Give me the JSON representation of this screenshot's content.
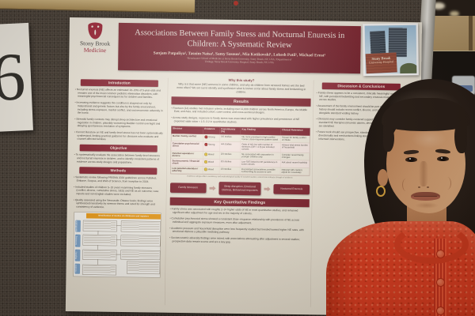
{
  "sign": {
    "number": "6"
  },
  "poster": {
    "logo": {
      "line1": "Stony Brook",
      "line2": "Medicine"
    },
    "header": {
      "title_line1": "Associations Between Family Stress and Nocturnal Enuresis in",
      "title_line2": "Children: A Systematic Review",
      "authors": "Sanjam Patpaliya¹, Tasnim Naisa¹, Samy Sasoun¹, Mia Kotikovski¹, Lokesh Patil¹, Michael Ernst²",
      "affiliation_line1": "¹Renaissance School of Medicine at Stony Brook University, Stony Brook, NY, USA; ²Department of",
      "affiliation_line2": "Urology, Stony Brook University Hospital, Stony Brook, NY, USA",
      "photo_caption_line1": "Stony Brook",
      "photo_caption_line2": "University Hospital"
    },
    "intro": {
      "heading": "Introduction",
      "bullets": [
        "Nocturnal enuresis (NE) affects an estimated 10–20% of 5-year-olds and remains one of the most common pediatric elimination disorders, with meaningful psychosocial consequences for children and families.",
        "Increasing evidence suggests the condition is shaped not only by maturational and genetic factors but also by the family environment, including stress exposure, marital conflict, and socioeconomic adversity in the home.",
        "Stressful family contexts may disrupt sleep architecture and emotional regulation in children, plausibly worsening bladder control overnight and delaying spontaneous resolution of symptoms.",
        "Current literature on NE and family-level stress has not been systematically synthesized, limiting practical guidance for clinicians who evaluate and counsel affected families."
      ]
    },
    "objective": {
      "heading": "Objective",
      "text": "To systematically evaluate the association between family-level stressors and nocturnal enuresis in children, and to identify consistent patterns of evidence across study designs and populations."
    },
    "methods": {
      "heading": "Methods",
      "bullets": [
        "Systematic review following PRISMA 2020 guidelines across PubMed, Embase, Scopus, and Web of Science, from inception to 2024.",
        "Included studies of children 5–18 years examining family stressors (conflict, divorce, cumulative stress, SES) and NE as an outcome; case reports and non-English studies were excluded.",
        "Quality assessed using the Newcastle–Ottawa Scale; findings were synthesized narratively by stressor theme and rated for strength and consistency of evidence."
      ],
      "prisma": {
        "header": "Identification of studies via databases and registers",
        "stages": [
          "Identification",
          "Screening",
          "Eligibility",
          "Included"
        ]
      }
    },
    "why": {
      "heading": "Why this study?",
      "text": "Why is it that some (NE) worsens in some children, and why do children from stressed homes wet the bed more often? We set out to identify and synthesize what is known so far about family stress and bedwetting in children."
    },
    "results": {
      "heading": "Results",
      "bullets": [
        "Fourteen (14) studies met inclusion criteria, including over 11,000 children across North America, Europe, the Middle East, and Asia, and included cohort, case-control, and cross-sectional designs.",
        "Across study designs, exposure to family stress was associated with higher prevalence and persistence of NE (reported odds ratios ≈ 1.5–3.2 in quantitative studies)."
      ],
      "table": {
        "headers": [
          "Stressor",
          "Evidence",
          "Consistency (%)",
          "Key Finding",
          "Clinical Relevance"
        ],
        "rows": [
          {
            "stressor": "Marital / family conflict",
            "evidence": "Strong",
            "consistency": "5/5 studies",
            "finding": "NE more prevalent in high-conflict homes; dose-response pattern noted",
            "relevance": "Screen for family conflict at intake"
          },
          {
            "stressor": "Cumulative psychosocial stress",
            "evidence": "Strong",
            "consistency": "4/4 studies",
            "finding": "Odds of NE rise with number of stressors (OR ≈ 2.8) per included cohorts",
            "relevance": "Assess total stress burden of household"
          },
          {
            "stressor": "Parental separation / divorce",
            "evidence": "Mixed",
            "consistency": "2/3 studies",
            "finding": "NE associated with separation in younger children only",
            "relevance": "Consider recent family changes"
          },
          {
            "stressor": "Socioeconomic / financial shock",
            "evidence": "Mixed",
            "consistency": "2/3 studies",
            "finding": "Low SES linked to NE persistence in some cohorts",
            "relevance": "Ask about recent hardship"
          },
          {
            "stressor": "Low parental education / adversity",
            "evidence": "Mixed",
            "consistency": "1/3 studies",
            "finding": "Inconsistent associations; possible confounding by access to care",
            "relevance": "Interpret with caution; adjust for covariates"
          }
        ]
      },
      "footnote": "Evidence ratings reflect consistency and methodological quality of included studies; colored dots indicate strength of evidence."
    },
    "flow": {
      "boxes": [
        "Family Stressors",
        "Sleep disruption, Emotional Distress, Behavioral responses",
        "Nocturnal Enuresis"
      ]
    },
    "key_findings": {
      "heading": "Key Quantitative Findings",
      "bullets": [
        "Family stress was associated with roughly 2–3× higher odds of NE in most quantitative studies, and remained significant after adjustment for age and sex in the majority of cohorts.",
        "Cumulative psychosocial stress showed a consistent dose–response relationship with prevalence of NE across individual and aggregate exposure measures, even after adjustment.",
        "Academic pressure and household disruption were less frequently studied but trended toward higher NE rates, with emotional distress a plausible mediating pathway.",
        "Socioeconomic adversity findings were mixed, with associations attenuating after adjustment in several studies; prospective data remain scarce and are a key gap."
      ]
    },
    "discussion": {
      "heading": "Discussion & Conclusions",
      "bullets": [
        "Family stress appears to be a consistent, clinically meaningful correlate of NE, with persistent bedwetting and secondary enuresis most affected across studies.",
        "Assessment of the family environment should be part of NE evaluation; history should include recent conflict, divorce, and socioeconomic strain alongside standard voiding history.",
        "Clinicians may consider family-centered support and counseling alongside standard NE therapies (enuresis alarms, desmopressin) when stressors are identified.",
        "Future work should use prospective, standardized designs to clarify directionality and mechanisms linking stress and NE, and to test stress-informed interventions."
      ]
    }
  }
}
